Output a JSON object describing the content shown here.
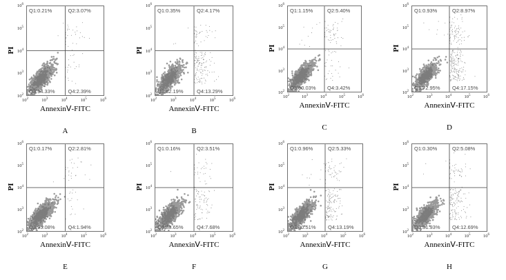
{
  "chart_data": [
    {
      "type": "scatter",
      "panel": "A",
      "xlabel": "AnnexinⅤ-FITC",
      "ylabel": "PI",
      "quadrants": {
        "Q1": "Q1:0.21%",
        "Q2": "Q2:3.07%",
        "Q3": "Q3:94.33%",
        "Q4": "Q4:2.39%"
      },
      "Q1": 0.21,
      "Q2": 3.07,
      "Q3": 94.33,
      "Q4": 2.39,
      "x_ticks": [
        "2",
        "3",
        "4",
        "5",
        "6"
      ],
      "y_ticks": [
        "2",
        "3",
        "4",
        "5",
        "6"
      ],
      "xlim": [
        100,
        1000000
      ],
      "ylim": [
        100,
        1000000
      ],
      "xscale": "log",
      "yscale": "log",
      "gates": {
        "x": 10000,
        "y": 10000
      },
      "color": "#8a8a8a"
    },
    {
      "type": "scatter",
      "panel": "B",
      "xlabel": "AnnexinⅤ-FITC",
      "ylabel": "PI",
      "quadrants": {
        "Q1": "Q1:0.35%",
        "Q2": "Q2:4.17%",
        "Q3": "Q3:82.19%",
        "Q4": "Q4:13.29%"
      },
      "Q1": 0.35,
      "Q2": 4.17,
      "Q3": 82.19,
      "Q4": 13.29,
      "x_ticks": [
        "2",
        "3",
        "4",
        "5",
        "6"
      ],
      "y_ticks": [
        "2",
        "3",
        "4",
        "5",
        "6"
      ],
      "xlim": [
        100,
        1000000
      ],
      "ylim": [
        100,
        1000000
      ],
      "xscale": "log",
      "yscale": "log",
      "gates": {
        "x": 10000,
        "y": 10000
      },
      "color": "#8a8a8a"
    },
    {
      "type": "scatter",
      "panel": "C",
      "xlabel": "AnnexinⅤ-FITC",
      "ylabel": "PI",
      "quadrants": {
        "Q1": "Q1:1.15%",
        "Q2": "Q2:5.40%",
        "Q3": "Q3:90.03%",
        "Q4": "Q4:3.42%"
      },
      "Q1": 1.15,
      "Q2": 5.4,
      "Q3": 90.03,
      "Q4": 3.42,
      "x_ticks": [
        "2",
        "3",
        "4",
        "5",
        "6"
      ],
      "y_ticks": [
        "2",
        "3",
        "4",
        "5",
        "6"
      ],
      "xlim": [
        100,
        1000000
      ],
      "ylim": [
        100,
        1000000
      ],
      "xscale": "log",
      "yscale": "log",
      "gates": {
        "x": 10000,
        "y": 10000
      },
      "color": "#8a8a8a"
    },
    {
      "type": "scatter",
      "panel": "D",
      "xlabel": "AnnexinⅤ-FITC",
      "ylabel": "PI",
      "quadrants": {
        "Q1": "Q1:0.93%",
        "Q2": "Q2:8.97%",
        "Q3": "Q3:72.95%",
        "Q4": "Q4:17.15%"
      },
      "Q1": 0.93,
      "Q2": 8.97,
      "Q3": 72.95,
      "Q4": 17.15,
      "x_ticks": [
        "2",
        "3",
        "4",
        "5",
        "6"
      ],
      "y_ticks": [
        "2",
        "3",
        "4",
        "5",
        "6"
      ],
      "xlim": [
        100,
        1000000
      ],
      "ylim": [
        100,
        1000000
      ],
      "xscale": "log",
      "yscale": "log",
      "gates": {
        "x": 10000,
        "y": 10000
      },
      "color": "#8a8a8a"
    },
    {
      "type": "scatter",
      "panel": "E",
      "xlabel": "AnnexinⅤ-FITC",
      "ylabel": "PI",
      "quadrants": {
        "Q1": "Q1:0.17%",
        "Q2": "Q2:2.81%",
        "Q3": "Q3:95.08%",
        "Q4": "Q4:1.94%"
      },
      "Q1": 0.17,
      "Q2": 2.81,
      "Q3": 95.08,
      "Q4": 1.94,
      "x_ticks": [
        "2",
        "3",
        "4",
        "5",
        "6"
      ],
      "y_ticks": [
        "2",
        "3",
        "4",
        "5",
        "6"
      ],
      "xlim": [
        100,
        1000000
      ],
      "ylim": [
        100,
        1000000
      ],
      "xscale": "log",
      "yscale": "log",
      "gates": {
        "x": 10000,
        "y": 10000
      },
      "color": "#8a8a8a"
    },
    {
      "type": "scatter",
      "panel": "F",
      "xlabel": "AnnexinⅤ-FITC",
      "ylabel": "PI",
      "quadrants": {
        "Q1": "Q1:0.16%",
        "Q2": "Q2:3.51%",
        "Q3": "Q3:88.65%",
        "Q4": "Q4:7.68%"
      },
      "Q1": 0.16,
      "Q2": 3.51,
      "Q3": 88.65,
      "Q4": 7.68,
      "x_ticks": [
        "2",
        "3",
        "4",
        "5",
        "6"
      ],
      "y_ticks": [
        "2",
        "3",
        "4",
        "5",
        "6"
      ],
      "xlim": [
        100,
        1000000
      ],
      "ylim": [
        100,
        1000000
      ],
      "xscale": "log",
      "yscale": "log",
      "gates": {
        "x": 10000,
        "y": 10000
      },
      "color": "#8a8a8a"
    },
    {
      "type": "scatter",
      "panel": "G",
      "xlabel": "AnnexinⅤ-FITC",
      "ylabel": "PI",
      "quadrants": {
        "Q1": "Q1:0.96%",
        "Q2": "Q2:5.33%",
        "Q3": "Q3:80.51%",
        "Q4": "Q4:13.19%"
      },
      "Q1": 0.96,
      "Q2": 5.33,
      "Q3": 80.51,
      "Q4": 13.19,
      "x_ticks": [
        "2",
        "3",
        "4",
        "5",
        "6"
      ],
      "y_ticks": [
        "2",
        "3",
        "4",
        "5",
        "6"
      ],
      "xlim": [
        100,
        1000000
      ],
      "ylim": [
        100,
        1000000
      ],
      "xscale": "log",
      "yscale": "log",
      "gates": {
        "x": 10000,
        "y": 10000
      },
      "color": "#8a8a8a"
    },
    {
      "type": "scatter",
      "panel": "H",
      "xlabel": "AnnexinⅤ-FITC",
      "ylabel": "PI",
      "quadrants": {
        "Q1": "Q1:0.30%",
        "Q2": "Q2:5.08%",
        "Q3": "Q3:81.93%",
        "Q4": "Q4:12.69%"
      },
      "Q1": 0.3,
      "Q2": 5.08,
      "Q3": 81.93,
      "Q4": 12.69,
      "x_ticks": [
        "2",
        "3",
        "4",
        "5",
        "6"
      ],
      "y_ticks": [
        "2",
        "3",
        "4",
        "5",
        "6"
      ],
      "xlim": [
        100,
        1000000
      ],
      "ylim": [
        100,
        1000000
      ],
      "xscale": "log",
      "yscale": "log",
      "gates": {
        "x": 10000,
        "y": 10000
      },
      "color": "#8a8a8a"
    }
  ]
}
